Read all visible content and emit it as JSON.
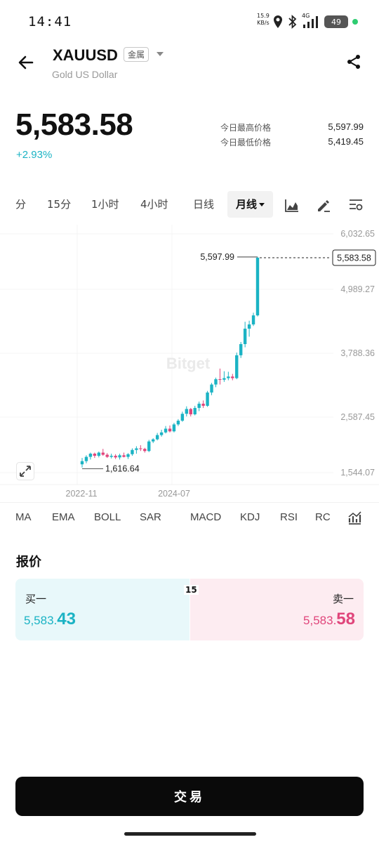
{
  "status_bar": {
    "time": "14:41",
    "net_speed_value": "15.9",
    "net_speed_unit": "KB/s",
    "network_type": "4G",
    "battery": "49"
  },
  "header": {
    "symbol": "XAUUSD",
    "tag": "金属",
    "subtitle": "Gold US Dollar"
  },
  "price": {
    "last": "5,583.58",
    "change": "+2.93%",
    "high_label": "今日最高价格",
    "high_value": "5,597.99",
    "low_label": "今日最低价格",
    "low_value": "5,419.45"
  },
  "timeframes": {
    "items": [
      "分",
      "15分",
      "1小时",
      "4小时",
      "日线"
    ],
    "active": "月线"
  },
  "icons": {
    "back": "arrow-left-icon",
    "share": "share-icon",
    "chart_type": "area-chart-icon",
    "draw": "pencil-icon",
    "settings": "chart-settings-icon",
    "expand": "expand-icon",
    "indicators": "indicator-settings-icon"
  },
  "chart_data": {
    "type": "candlestick",
    "y_ticks": [
      "6,032.65",
      "4,989.27",
      "3,788.36",
      "2,587.45",
      "1,544.07"
    ],
    "y_tick_values": [
      6032.65,
      4989.27,
      3788.36,
      2587.45,
      1544.07
    ],
    "x_ticks": [
      "2022-11",
      "2024-07"
    ],
    "max_label": "5,597.99",
    "min_label": "1,616.64",
    "max_value": 5597.99,
    "min_value": 1616.64,
    "current_label": "5,583.58",
    "current_value": 5583.58,
    "watermark": "Bitget",
    "colors": {
      "up": "#1bb3c4",
      "down": "#e0457b"
    },
    "candles": [
      [
        1700,
        1820,
        1640,
        1760
      ],
      [
        1760,
        1870,
        1720,
        1840
      ],
      [
        1840,
        1920,
        1790,
        1900
      ],
      [
        1900,
        1920,
        1820,
        1860
      ],
      [
        1860,
        1940,
        1830,
        1920
      ],
      [
        1920,
        1990,
        1860,
        1880
      ],
      [
        1880,
        1910,
        1820,
        1840
      ],
      [
        1840,
        1900,
        1810,
        1860
      ],
      [
        1860,
        1890,
        1800,
        1830
      ],
      [
        1830,
        1900,
        1790,
        1870
      ],
      [
        1870,
        1920,
        1830,
        1840
      ],
      [
        1840,
        1910,
        1800,
        1890
      ],
      [
        1890,
        2000,
        1860,
        1970
      ],
      [
        1970,
        2040,
        1900,
        2000
      ],
      [
        2000,
        2060,
        1950,
        1990
      ],
      [
        1990,
        2010,
        1920,
        1950
      ],
      [
        1950,
        2160,
        1930,
        2130
      ],
      [
        2130,
        2190,
        2100,
        2170
      ],
      [
        2170,
        2290,
        2150,
        2250
      ],
      [
        2250,
        2350,
        2220,
        2300
      ],
      [
        2300,
        2420,
        2280,
        2370
      ],
      [
        2370,
        2430,
        2300,
        2320
      ],
      [
        2320,
        2480,
        2300,
        2450
      ],
      [
        2450,
        2550,
        2420,
        2520
      ],
      [
        2520,
        2690,
        2500,
        2650
      ],
      [
        2650,
        2790,
        2600,
        2740
      ],
      [
        2740,
        2760,
        2600,
        2640
      ],
      [
        2640,
        2800,
        2620,
        2760
      ],
      [
        2760,
        2880,
        2700,
        2840
      ],
      [
        2840,
        2900,
        2760,
        2800
      ],
      [
        2800,
        3080,
        2780,
        3050
      ],
      [
        3050,
        3230,
        3000,
        3200
      ],
      [
        3200,
        3330,
        3150,
        3300
      ],
      [
        3300,
        3500,
        3200,
        3290
      ],
      [
        3290,
        3450,
        3250,
        3320
      ],
      [
        3320,
        3440,
        3280,
        3350
      ],
      [
        3350,
        3400,
        3280,
        3320
      ],
      [
        3320,
        3800,
        3300,
        3750
      ],
      [
        3750,
        4000,
        3700,
        3960
      ],
      [
        3960,
        4380,
        3900,
        4250
      ],
      [
        4250,
        4400,
        4100,
        4330
      ],
      [
        4330,
        4550,
        4300,
        4500
      ],
      [
        4500,
        5598,
        4480,
        5584
      ]
    ]
  },
  "indicators": [
    "MA",
    "EMA",
    "BOLL",
    "SAR",
    "MACD",
    "KDJ",
    "RSI",
    "RC"
  ],
  "quote": {
    "title": "报价",
    "bid_label": "买一",
    "bid_price_main": "5,583.",
    "bid_price_tail": "43",
    "ask_label": "卖一",
    "ask_price_main": "5,583.",
    "ask_price_tail": "58",
    "spread": "15"
  },
  "trade_button": "交易"
}
